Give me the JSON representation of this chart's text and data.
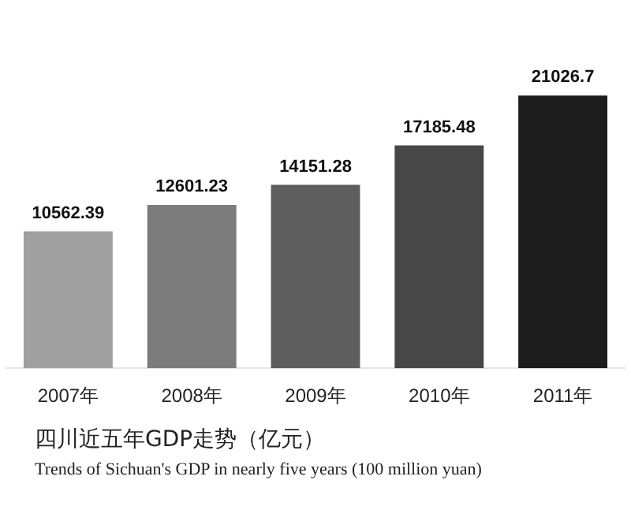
{
  "chart_data": {
    "type": "bar",
    "title": "四川近五年GDP走势（亿元）",
    "subtitle": "Trends of Sichuan's GDP in nearly five years (100 million yuan)",
    "categories": [
      "2007年",
      "2008年",
      "2009年",
      "2010年",
      "2011年"
    ],
    "values": [
      10562.39,
      12601.23,
      14151.28,
      17185.48,
      21026.7
    ],
    "colors": [
      "#a0a0a0",
      "#7c7c7c",
      "#5e5e5e",
      "#474747",
      "#1c1c1c"
    ],
    "data_labels": true,
    "grid": false,
    "legend": false
  }
}
